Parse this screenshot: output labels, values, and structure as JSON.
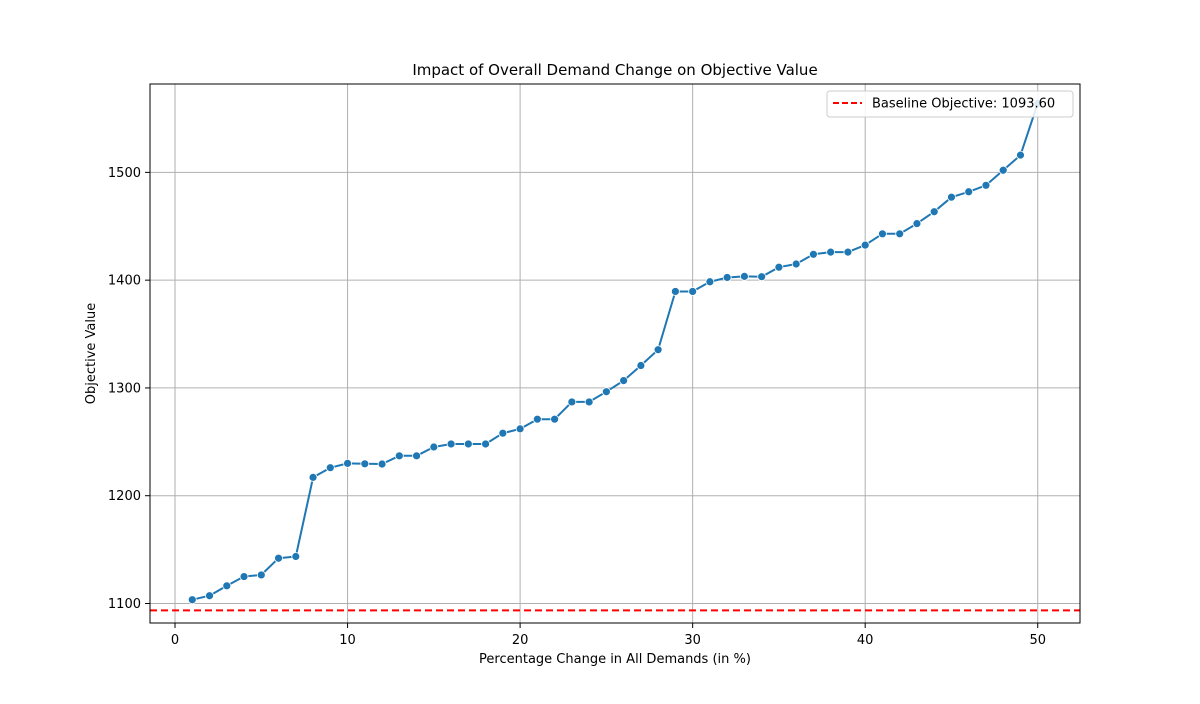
{
  "chart_data": {
    "type": "line",
    "title": "Impact of Overall Demand Change on Objective Value",
    "xlabel": "Percentage Change in All Demands (in %)",
    "ylabel": "Objective Value",
    "xlim": [
      -1.45,
      52.45
    ],
    "ylim": [
      1081.9,
      1582.0
    ],
    "x_ticks": [
      0,
      10,
      20,
      30,
      40,
      50
    ],
    "y_ticks": [
      1100,
      1200,
      1300,
      1400,
      1500
    ],
    "grid": true,
    "legend_position": "top-right",
    "series": [
      {
        "name": "",
        "color": "#1f77b4",
        "marker": "circle",
        "x": [
          1,
          2,
          3,
          4,
          5,
          6,
          7,
          8,
          9,
          10,
          11,
          12,
          13,
          14,
          15,
          16,
          17,
          18,
          19,
          20,
          21,
          22,
          23,
          24,
          25,
          26,
          27,
          28,
          29,
          30,
          31,
          32,
          33,
          34,
          35,
          36,
          37,
          38,
          39,
          40,
          41,
          42,
          43,
          44,
          45,
          46,
          47,
          48,
          49,
          50
        ],
        "values": [
          1103.5,
          1107.2,
          1116.4,
          1125.0,
          1126.5,
          1142.0,
          1143.6,
          1217.0,
          1226.0,
          1230.0,
          1229.6,
          1229.4,
          1237.0,
          1237.0,
          1245.2,
          1248.0,
          1248.0,
          1248.0,
          1258.0,
          1262.0,
          1271.0,
          1271.0,
          1287.0,
          1287.0,
          1296.5,
          1306.8,
          1320.8,
          1335.5,
          1389.5,
          1389.5,
          1398.5,
          1402.5,
          1403.5,
          1403.2,
          1412.0,
          1415.0,
          1424.0,
          1426.0,
          1426.0,
          1432.5,
          1443.0,
          1443.0,
          1452.5,
          1463.5,
          1477.0,
          1482.0,
          1488.0,
          1502.0,
          1516.0,
          1564.0
        ]
      }
    ],
    "baseline": {
      "label": "Baseline Objective: 1093.60",
      "value": 1093.6,
      "color": "#ff0000",
      "style": "dashed"
    }
  }
}
